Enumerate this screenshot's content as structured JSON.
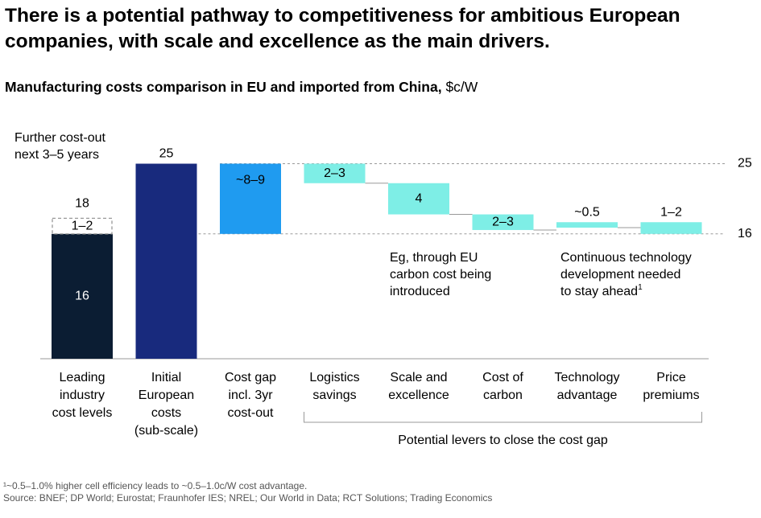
{
  "title": "There is a potential pathway to competitiveness for ambitious European companies, with scale and excellence as the main drivers.",
  "subtitle_bold": "Manufacturing costs comparison in EU and imported from China,",
  "subtitle_unit": "$c/W",
  "colors": {
    "leading": "#0b1d33",
    "initial": "#182a7d",
    "gap": "#1f9bf0",
    "lever": "#7eeee6",
    "dashed": "#999999",
    "axis": "#999999"
  },
  "chart_data": {
    "type": "bar",
    "subtype": "waterfall",
    "unit": "$c/W",
    "ylim": [
      0,
      25
    ],
    "reference_lines": [
      {
        "value": 25,
        "label": "25"
      },
      {
        "value": 16,
        "label": "16"
      }
    ],
    "categories": [
      "Leading industry cost levels",
      "Initial European costs (sub-scale)",
      "Cost gap incl. 3yr cost-out",
      "Logistics savings",
      "Scale and excellence",
      "Cost of carbon",
      "Technology advantage",
      "Price premiums"
    ],
    "category_lines": [
      [
        "Leading",
        "industry",
        "cost levels"
      ],
      [
        "Initial",
        "European",
        "costs",
        "(sub-scale)"
      ],
      [
        "Cost gap",
        "incl. 3yr",
        "cost-out"
      ],
      [
        "Logistics",
        "savings"
      ],
      [
        "Scale and",
        "excellence"
      ],
      [
        "Cost of",
        "carbon"
      ],
      [
        "Technology",
        "advantage"
      ],
      [
        "Price",
        "premiums"
      ]
    ],
    "bars": [
      {
        "label": "16",
        "start": 0,
        "end": 16,
        "kind": "leading",
        "label_pos": "inside-light"
      },
      {
        "label": "25",
        "start": 0,
        "end": 25,
        "kind": "initial",
        "label_pos": "above"
      },
      {
        "label": "~8–9",
        "start": 16,
        "end": 25,
        "kind": "gap",
        "label_pos": "inside-top"
      },
      {
        "label": "2–3",
        "start": 22.5,
        "end": 25,
        "kind": "lever",
        "label_pos": "inside"
      },
      {
        "label": "4",
        "start": 18.5,
        "end": 22.5,
        "kind": "lever",
        "label_pos": "inside"
      },
      {
        "label": "2–3",
        "start": 16.5,
        "end": 18.5,
        "kind": "lever",
        "label_pos": "inside"
      },
      {
        "label": "~0.5",
        "start": 16.8,
        "end": 17.5,
        "kind": "lever",
        "label_pos": "above"
      },
      {
        "label": "1–2",
        "start": 16,
        "end": 17.5,
        "kind": "lever",
        "label_pos": "above"
      }
    ],
    "further_cost_out": {
      "label": "1–2",
      "total_label": "18",
      "start": 16,
      "end": 18,
      "note_lines": [
        "Further cost-out",
        "next 3–5 years"
      ]
    },
    "annotations": [
      {
        "lines": [
          "Eg, through EU",
          "carbon cost being",
          "introduced"
        ]
      },
      {
        "lines": [
          "Continuous technology",
          "development needed",
          "to stay ahead"
        ],
        "superscript": "1"
      }
    ],
    "bracket_label": "Potential levers to close the cost gap"
  },
  "footnotes": {
    "note": "¹~0.5–1.0% higher cell efficiency leads to ~0.5–1.0c/W cost advantage.",
    "source": "Source: BNEF; DP World; Eurostat; Fraunhofer IES; NREL; Our World in Data; RCT Solutions; Trading Economics"
  }
}
